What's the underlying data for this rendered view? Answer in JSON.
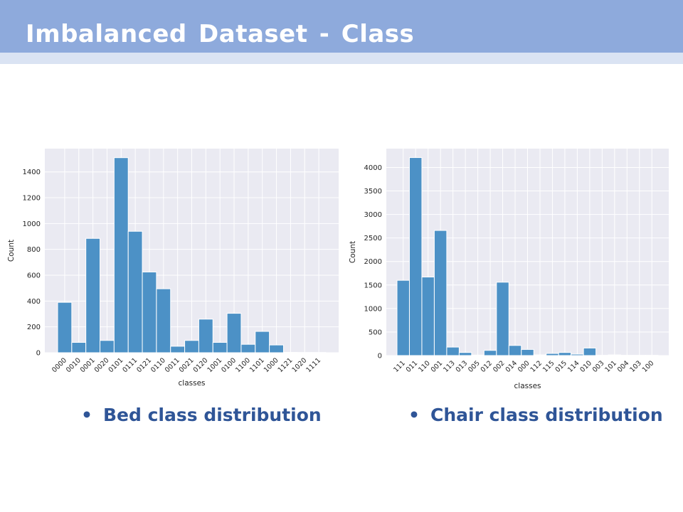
{
  "slide": {
    "title": "Imbalanced Dataset - Class",
    "captions": [
      {
        "bullet": "•",
        "text": "Bed class distribution"
      },
      {
        "bullet": "•",
        "text": "Chair class distribution"
      }
    ]
  },
  "colors": {
    "header": "#8eaadc",
    "header_strip": "#dae3f3",
    "caption": "#2f5597",
    "bar_fill": "#4c91c6",
    "plot_background": "#eaeaf2",
    "grid": "#ffffff"
  },
  "chart_data": [
    {
      "type": "bar",
      "style": "seaborn-darkgrid histogram",
      "title": "",
      "xlabel": "classes",
      "ylabel": "Count",
      "grid": true,
      "categories": [
        "0000",
        "0010",
        "0001",
        "0020",
        "0101",
        "0111",
        "0121",
        "0110",
        "0011",
        "0021",
        "0120",
        "1001",
        "0100",
        "1100",
        "1101",
        "1000",
        "1121",
        "1020",
        "1111"
      ],
      "values": [
        390,
        80,
        885,
        95,
        1510,
        940,
        625,
        495,
        50,
        95,
        260,
        80,
        305,
        65,
        165,
        60,
        3,
        2,
        2
      ],
      "ylim": [
        0,
        1580
      ],
      "yticks": [
        0,
        200,
        400,
        600,
        800,
        1000,
        1200,
        1400
      ]
    },
    {
      "type": "bar",
      "style": "seaborn-darkgrid histogram",
      "title": "",
      "xlabel": "classes",
      "ylabel": "Count",
      "grid": true,
      "categories": [
        "111",
        "011",
        "110",
        "001",
        "113",
        "013",
        "005",
        "012",
        "002",
        "014",
        "000",
        "112",
        "115",
        "015",
        "114",
        "010",
        "003",
        "101",
        "004",
        "103",
        "100"
      ],
      "values": [
        1600,
        4210,
        1670,
        2660,
        180,
        65,
        10,
        110,
        1560,
        215,
        130,
        15,
        45,
        65,
        30,
        160,
        5,
        15,
        5,
        5,
        5
      ],
      "ylim": [
        0,
        4400
      ],
      "yticks": [
        0,
        500,
        1000,
        1500,
        2000,
        2500,
        3000,
        3500,
        4000
      ]
    }
  ]
}
